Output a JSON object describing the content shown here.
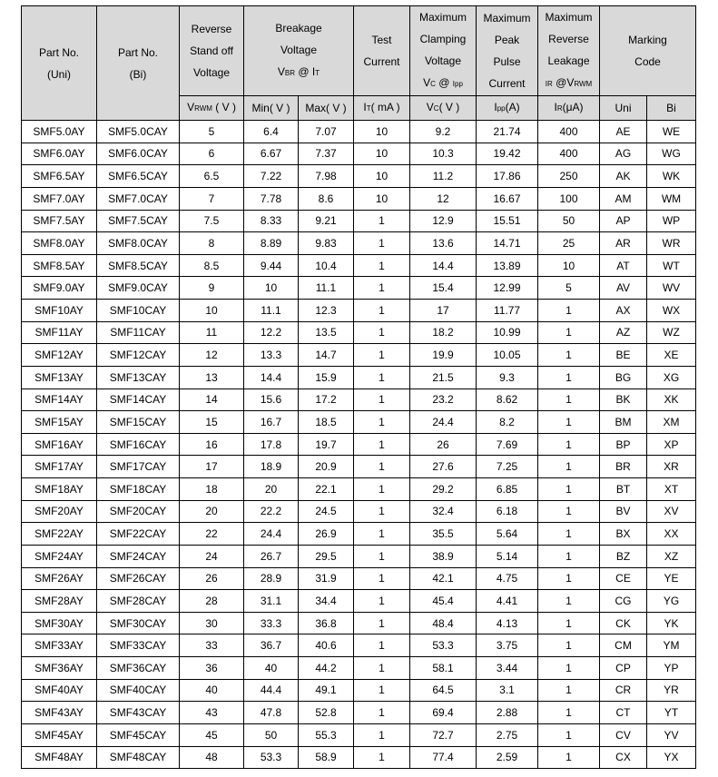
{
  "header": {
    "top": [
      {
        "lines": [
          [
            {
              "t": "Part No."
            }
          ],
          [
            {
              "t": "(Uni)"
            }
          ]
        ],
        "rowspan": 2
      },
      {
        "lines": [
          [
            {
              "t": "Part No."
            }
          ],
          [
            {
              "t": "(Bi)"
            }
          ]
        ],
        "rowspan": 2
      },
      {
        "lines": [
          [
            {
              "t": "Reverse"
            }
          ],
          [
            {
              "t": "Stand off"
            }
          ],
          [
            {
              "t": "Voltage"
            }
          ]
        ]
      },
      {
        "lines": [
          [
            {
              "t": "Breakage"
            }
          ],
          [
            {
              "t": "Voltage"
            }
          ],
          [
            {
              "t": "V"
            },
            {
              "s": "BR"
            },
            {
              "t": " @ I"
            },
            {
              "s": "T"
            }
          ]
        ],
        "colspan": 2
      },
      {
        "lines": [
          [
            {
              "t": "Test"
            }
          ],
          [
            {
              "t": "Current"
            }
          ]
        ]
      },
      {
        "lines": [
          [
            {
              "t": "Maximum"
            }
          ],
          [
            {
              "t": "Clamping"
            }
          ],
          [
            {
              "t": "Voltage"
            }
          ],
          [
            {
              "t": "V"
            },
            {
              "s": "C"
            },
            {
              "t": " @ "
            },
            {
              "s": "Ipp"
            }
          ]
        ]
      },
      {
        "lines": [
          [
            {
              "t": "Maximum"
            }
          ],
          [
            {
              "t": "Peak"
            }
          ],
          [
            {
              "t": "Pulse"
            }
          ],
          [
            {
              "t": "Current"
            }
          ]
        ]
      },
      {
        "lines": [
          [
            {
              "t": "Maximum"
            }
          ],
          [
            {
              "t": "Reverse"
            }
          ],
          [
            {
              "t": "Leakage"
            }
          ],
          [
            {
              "s": "IR"
            },
            {
              "t": " @V"
            },
            {
              "s": "RWM"
            }
          ]
        ]
      },
      {
        "lines": [
          [
            {
              "t": "Marking"
            }
          ],
          [
            {
              "t": "Code"
            }
          ]
        ],
        "colspan": 2
      }
    ],
    "units": [
      [
        {
          "t": "V"
        },
        {
          "s": "RWM"
        },
        {
          "t": " ( V )"
        }
      ],
      [
        {
          "t": "Min( V )"
        }
      ],
      [
        {
          "t": "Max( V )"
        }
      ],
      [
        {
          "t": "I"
        },
        {
          "s": "T"
        },
        {
          "t": "( mA )"
        }
      ],
      [
        {
          "t": "V"
        },
        {
          "s": "C"
        },
        {
          "t": "( V )"
        }
      ],
      [
        {
          "t": "I"
        },
        {
          "s": "pp"
        },
        {
          "t": "(A)"
        }
      ],
      [
        {
          "t": "I"
        },
        {
          "s": "R"
        },
        {
          "t": "(μA)"
        }
      ],
      [
        {
          "t": "Uni"
        }
      ],
      [
        {
          "t": "Bi"
        }
      ]
    ]
  },
  "rows": [
    [
      "SMF5.0AY",
      "SMF5.0CAY",
      "5",
      "6.4",
      "7.07",
      "10",
      "9.2",
      "21.74",
      "400",
      "AE",
      "WE"
    ],
    [
      "SMF6.0AY",
      "SMF6.0CAY",
      "6",
      "6.67",
      "7.37",
      "10",
      "10.3",
      "19.42",
      "400",
      "AG",
      "WG"
    ],
    [
      "SMF6.5AY",
      "SMF6.5CAY",
      "6.5",
      "7.22",
      "7.98",
      "10",
      "11.2",
      "17.86",
      "250",
      "AK",
      "WK"
    ],
    [
      "SMF7.0AY",
      "SMF7.0CAY",
      "7",
      "7.78",
      "8.6",
      "10",
      "12",
      "16.67",
      "100",
      "AM",
      "WM"
    ],
    [
      "SMF7.5AY",
      "SMF7.5CAY",
      "7.5",
      "8.33",
      "9.21",
      "1",
      "12.9",
      "15.51",
      "50",
      "AP",
      "WP"
    ],
    [
      "SMF8.0AY",
      "SMF8.0CAY",
      "8",
      "8.89",
      "9.83",
      "1",
      "13.6",
      "14.71",
      "25",
      "AR",
      "WR"
    ],
    [
      "SMF8.5AY",
      "SMF8.5CAY",
      "8.5",
      "9.44",
      "10.4",
      "1",
      "14.4",
      "13.89",
      "10",
      "AT",
      "WT"
    ],
    [
      "SMF9.0AY",
      "SMF9.0CAY",
      "9",
      "10",
      "11.1",
      "1",
      "15.4",
      "12.99",
      "5",
      "AV",
      "WV"
    ],
    [
      "SMF10AY",
      "SMF10CAY",
      "10",
      "11.1",
      "12.3",
      "1",
      "17",
      "11.77",
      "1",
      "AX",
      "WX"
    ],
    [
      "SMF11AY",
      "SMF11CAY",
      "11",
      "12.2",
      "13.5",
      "1",
      "18.2",
      "10.99",
      "1",
      "AZ",
      "WZ"
    ],
    [
      "SMF12AY",
      "SMF12CAY",
      "12",
      "13.3",
      "14.7",
      "1",
      "19.9",
      "10.05",
      "1",
      "BE",
      "XE"
    ],
    [
      "SMF13AY",
      "SMF13CAY",
      "13",
      "14.4",
      "15.9",
      "1",
      "21.5",
      "9.3",
      "1",
      "BG",
      "XG"
    ],
    [
      "SMF14AY",
      "SMF14CAY",
      "14",
      "15.6",
      "17.2",
      "1",
      "23.2",
      "8.62",
      "1",
      "BK",
      "XK"
    ],
    [
      "SMF15AY",
      "SMF15CAY",
      "15",
      "16.7",
      "18.5",
      "1",
      "24.4",
      "8.2",
      "1",
      "BM",
      "XM"
    ],
    [
      "SMF16AY",
      "SMF16CAY",
      "16",
      "17.8",
      "19.7",
      "1",
      "26",
      "7.69",
      "1",
      "BP",
      "XP"
    ],
    [
      "SMF17AY",
      "SMF17CAY",
      "17",
      "18.9",
      "20.9",
      "1",
      "27.6",
      "7.25",
      "1",
      "BR",
      "XR"
    ],
    [
      "SMF18AY",
      "SMF18CAY",
      "18",
      "20",
      "22.1",
      "1",
      "29.2",
      "6.85",
      "1",
      "BT",
      "XT"
    ],
    [
      "SMF20AY",
      "SMF20CAY",
      "20",
      "22.2",
      "24.5",
      "1",
      "32.4",
      "6.18",
      "1",
      "BV",
      "XV"
    ],
    [
      "SMF22AY",
      "SMF22CAY",
      "22",
      "24.4",
      "26.9",
      "1",
      "35.5",
      "5.64",
      "1",
      "BX",
      "XX"
    ],
    [
      "SMF24AY",
      "SMF24CAY",
      "24",
      "26.7",
      "29.5",
      "1",
      "38.9",
      "5.14",
      "1",
      "BZ",
      "XZ"
    ],
    [
      "SMF26AY",
      "SMF26CAY",
      "26",
      "28.9",
      "31.9",
      "1",
      "42.1",
      "4.75",
      "1",
      "CE",
      "YE"
    ],
    [
      "SMF28AY",
      "SMF28CAY",
      "28",
      "31.1",
      "34.4",
      "1",
      "45.4",
      "4.41",
      "1",
      "CG",
      "YG"
    ],
    [
      "SMF30AY",
      "SMF30CAY",
      "30",
      "33.3",
      "36.8",
      "1",
      "48.4",
      "4.13",
      "1",
      "CK",
      "YK"
    ],
    [
      "SMF33AY",
      "SMF33CAY",
      "33",
      "36.7",
      "40.6",
      "1",
      "53.3",
      "3.75",
      "1",
      "CM",
      "YM"
    ],
    [
      "SMF36AY",
      "SMF36CAY",
      "36",
      "40",
      "44.2",
      "1",
      "58.1",
      "3.44",
      "1",
      "CP",
      "YP"
    ],
    [
      "SMF40AY",
      "SMF40CAY",
      "40",
      "44.4",
      "49.1",
      "1",
      "64.5",
      "3.1",
      "1",
      "CR",
      "YR"
    ],
    [
      "SMF43AY",
      "SMF43CAY",
      "43",
      "47.8",
      "52.8",
      "1",
      "69.4",
      "2.88",
      "1",
      "CT",
      "YT"
    ],
    [
      "SMF45AY",
      "SMF45CAY",
      "45",
      "50",
      "55.3",
      "1",
      "72.7",
      "2.75",
      "1",
      "CV",
      "YV"
    ],
    [
      "SMF48AY",
      "SMF48CAY",
      "48",
      "53.3",
      "58.9",
      "1",
      "77.4",
      "2.59",
      "1",
      "CX",
      "YX"
    ]
  ]
}
